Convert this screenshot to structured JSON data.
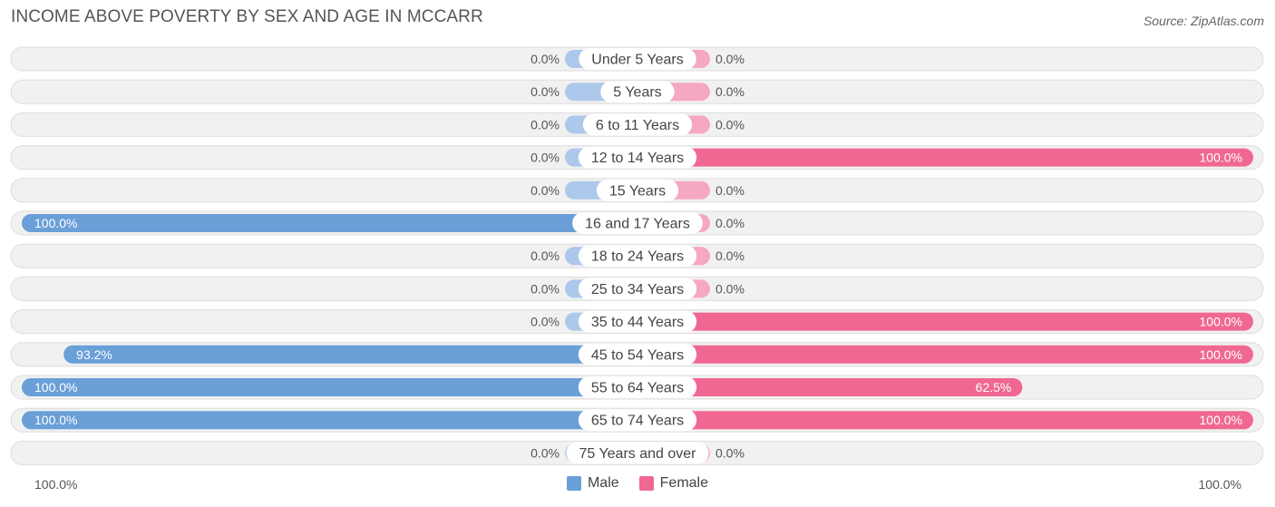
{
  "title": "INCOME ABOVE POVERTY BY SEX AND AGE IN MCCARR",
  "source": "Source: ZipAtlas.com",
  "colors": {
    "male_strong": "#6a9fd8",
    "male_light": "#adc8eb",
    "female_strong": "#f06892",
    "female_light": "#f5a8c0",
    "row_bg": "#f1f1f1",
    "row_border": "#dddddd"
  },
  "axis": {
    "left_label": "100.0%",
    "right_label": "100.0%"
  },
  "legend": [
    {
      "label": "Male",
      "color": "#6a9fd8"
    },
    {
      "label": "Female",
      "color": "#f06892"
    }
  ],
  "chart_data": {
    "type": "bar",
    "orientation": "horizontal-diverging",
    "title": "INCOME ABOVE POVERTY BY SEX AND AGE IN MCCARR",
    "xlim": [
      0,
      100
    ],
    "categories": [
      "Under 5 Years",
      "5 Years",
      "6 to 11 Years",
      "12 to 14 Years",
      "15 Years",
      "16 and 17 Years",
      "18 to 24 Years",
      "25 to 34 Years",
      "35 to 44 Years",
      "45 to 54 Years",
      "55 to 64 Years",
      "65 to 74 Years",
      "75 Years and over"
    ],
    "series": [
      {
        "name": "Male",
        "values": [
          0,
          0,
          0,
          0,
          0,
          100,
          0,
          0,
          0,
          93.2,
          100,
          100,
          0
        ],
        "labels": [
          "0.0%",
          "0.0%",
          "0.0%",
          "0.0%",
          "0.0%",
          "100.0%",
          "0.0%",
          "0.0%",
          "0.0%",
          "93.2%",
          "100.0%",
          "100.0%",
          "0.0%"
        ]
      },
      {
        "name": "Female",
        "values": [
          0,
          0,
          0,
          100,
          0,
          0,
          0,
          0,
          100,
          100,
          62.5,
          100,
          0
        ],
        "labels": [
          "0.0%",
          "0.0%",
          "0.0%",
          "100.0%",
          "0.0%",
          "0.0%",
          "0.0%",
          "0.0%",
          "100.0%",
          "100.0%",
          "62.5%",
          "100.0%",
          "0.0%"
        ]
      }
    ],
    "legend_position": "bottom-center"
  }
}
